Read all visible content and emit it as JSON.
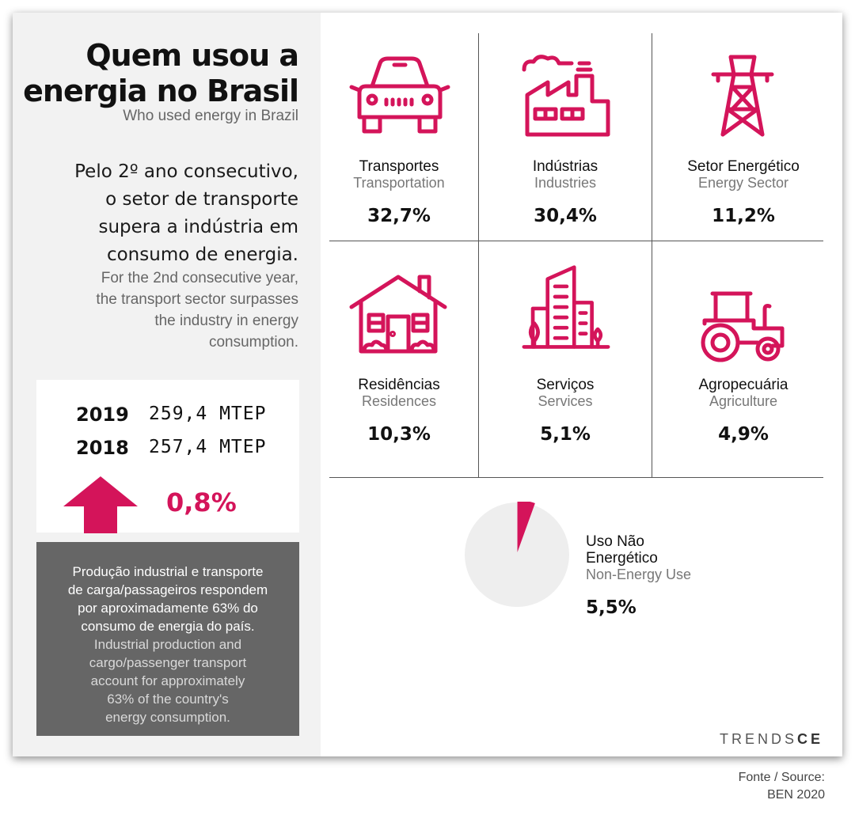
{
  "header": {
    "title_line1": "Quem usou a",
    "title_line2": "energia no Brasil",
    "subtitle": "Who used energy in Brazil"
  },
  "lead": {
    "pt": [
      "Pelo 2º ano consecutivo,",
      "o setor de transporte",
      "supera a indústria em",
      "consumo de energia."
    ],
    "en": [
      "For the 2nd consecutive year,",
      "the transport sector surpasses",
      "the industry in energy",
      "consumption."
    ]
  },
  "stats": {
    "rows": [
      {
        "year": "2019",
        "value": "259,4 MTEP"
      },
      {
        "year": "2018",
        "value": "257,4 MTEP"
      }
    ],
    "change": "0,8%",
    "arrow_icon": "up-arrow-icon"
  },
  "note": {
    "pt": [
      "Produção industrial e transporte",
      "de carga/passageiros respondem",
      "por aproximadamente 63% do",
      "consumo de energia do país."
    ],
    "en": [
      "Industrial production and",
      "cargo/passenger transport",
      "account for approximately",
      "63% of the country's",
      "energy consumption."
    ]
  },
  "sectors": [
    {
      "pt": "Transportes",
      "en": "Transportation",
      "pct": "32,7%",
      "icon": "car-icon"
    },
    {
      "pt": "Indústrias",
      "en": "Industries",
      "pct": "30,4%",
      "icon": "factory-icon"
    },
    {
      "pt": "Setor Energético",
      "en": "Energy Sector",
      "pct": "11,2%",
      "icon": "power-tower-icon"
    },
    {
      "pt": "Residências",
      "en": "Residences",
      "pct": "10,3%",
      "icon": "house-icon"
    },
    {
      "pt": "Serviços",
      "en": "Services",
      "pct": "5,1%",
      "icon": "buildings-icon"
    },
    {
      "pt": "Agropecuária",
      "en": "Agriculture",
      "pct": "4,9%",
      "icon": "tractor-icon"
    }
  ],
  "non_energy": {
    "pt_line1": "Uso Não",
    "pt_line2": "Energético",
    "en": "Non-Energy Use",
    "pct": "5,5%",
    "share": 0.055
  },
  "brand": {
    "light": "TRENDS",
    "bold": "CE"
  },
  "source": {
    "line1": "Fonte / Source:",
    "line2": "BEN 2020"
  },
  "colors": {
    "accent": "#d4145a",
    "panel": "#f2f2f2",
    "note_box": "#666666",
    "pie_bg": "#eeeeee"
  }
}
